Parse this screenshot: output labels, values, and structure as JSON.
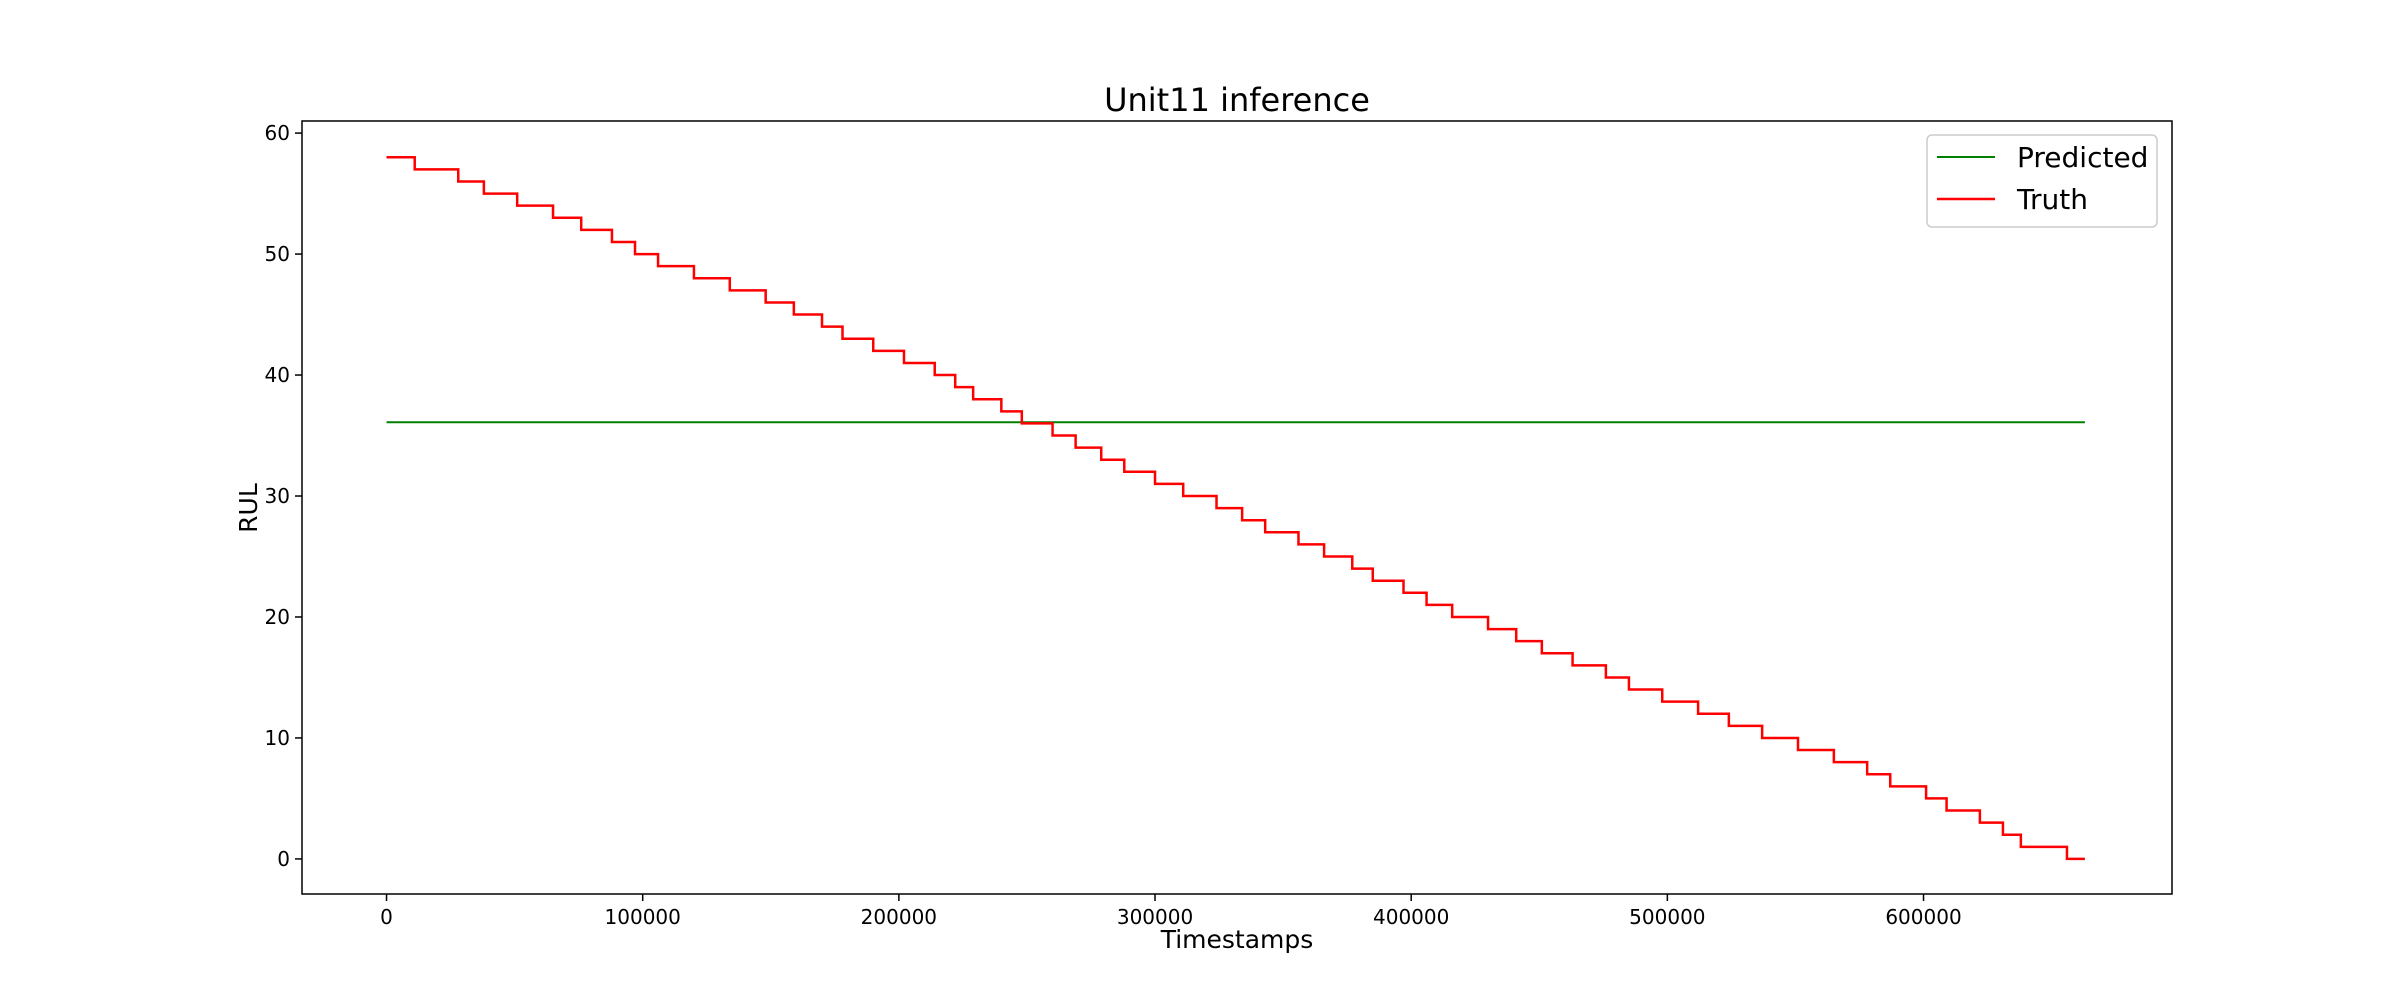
{
  "chart_data": {
    "type": "line",
    "title": "Unit11 inference",
    "xlabel": "Timestamps",
    "ylabel": "RUL",
    "xlim": [
      -33000,
      697000
    ],
    "ylim": [
      -2.9,
      61
    ],
    "xticks": [
      0,
      100000,
      200000,
      300000,
      400000,
      500000,
      600000
    ],
    "yticks": [
      0,
      10,
      20,
      30,
      40,
      50,
      60
    ],
    "grid": false,
    "legend_position": "top-right",
    "series": [
      {
        "name": "Predicted",
        "color": "#008000",
        "style": "line",
        "x": [
          0,
          663000
        ],
        "y": [
          36.1,
          36.1
        ]
      },
      {
        "name": "Truth",
        "color": "#ff0000",
        "style": "step",
        "x": [
          0,
          11000,
          28000,
          38000,
          51000,
          65000,
          76000,
          88000,
          97000,
          106000,
          120000,
          134000,
          148000,
          159000,
          170000,
          178000,
          190000,
          202000,
          214000,
          222000,
          229000,
          240000,
          248000,
          260000,
          269000,
          279000,
          288000,
          300000,
          311000,
          324000,
          334000,
          343000,
          356000,
          366000,
          377000,
          385000,
          397000,
          406000,
          416000,
          430000,
          441000,
          451000,
          463000,
          476000,
          485000,
          498000,
          512000,
          524000,
          537000,
          551000,
          565000,
          578000,
          587000,
          601000,
          609000,
          622000,
          631000,
          638000,
          656000,
          663000
        ],
        "y": [
          58,
          57,
          56,
          55,
          54,
          53,
          52,
          51,
          50,
          49,
          48,
          47,
          46,
          45,
          44,
          43,
          42,
          41,
          40,
          39,
          38,
          37,
          36,
          35,
          34,
          33,
          32,
          31,
          30,
          29,
          28,
          27,
          26,
          25,
          24,
          23,
          22,
          21,
          20,
          19,
          18,
          17,
          16,
          15,
          14,
          13,
          12,
          11,
          10,
          9,
          8,
          7,
          6,
          5,
          4,
          3,
          2,
          1,
          0,
          0
        ]
      }
    ]
  }
}
